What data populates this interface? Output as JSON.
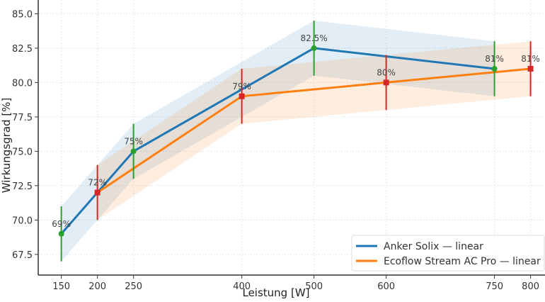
{
  "chart_data": {
    "type": "line",
    "title": "",
    "xlabel": "Leistung [W]",
    "ylabel": "Wirkungsgrad [%]",
    "xlim": [
      118,
      820
    ],
    "ylim": [
      66.0,
      86.0
    ],
    "xticks": [
      150,
      200,
      250,
      400,
      500,
      600,
      750,
      800
    ],
    "yticks": [
      "67.5",
      "70.0",
      "72.5",
      "75.0",
      "77.5",
      "80.0",
      "82.5",
      "85.0"
    ],
    "grid": true,
    "legend_position": "bottom-right",
    "series": [
      {
        "name": "Anker Solix — linear",
        "color": "#1f77b4",
        "marker_color": "#2ca02c",
        "x": [
          150,
          250,
          500,
          750
        ],
        "y": [
          69,
          75,
          82.5,
          81
        ],
        "error": 2,
        "labels": [
          "69%",
          "75%",
          "82.5%",
          "81%"
        ]
      },
      {
        "name": "Ecoflow Stream AC Pro — linear",
        "color": "#ff7f0e",
        "marker_color": "#d62728",
        "x": [
          200,
          400,
          600,
          800
        ],
        "y": [
          72,
          79,
          80,
          81
        ],
        "error": 2,
        "labels": [
          "72%",
          "79%",
          "80%",
          "81%"
        ]
      }
    ]
  }
}
